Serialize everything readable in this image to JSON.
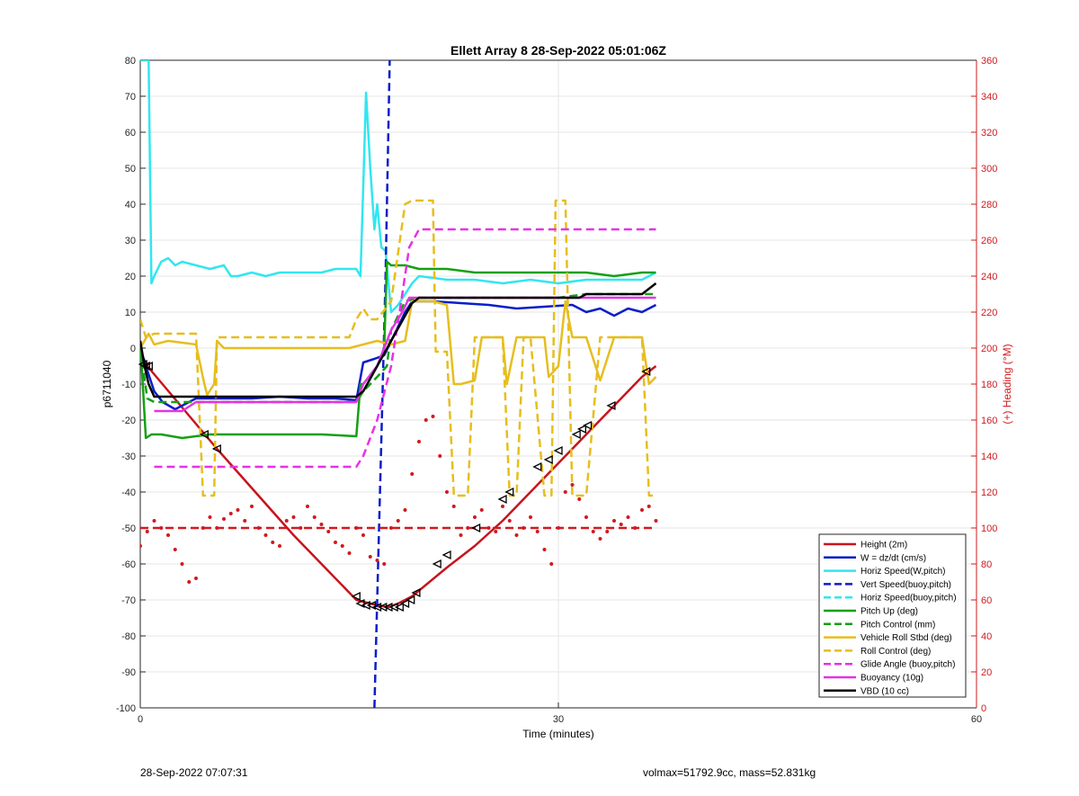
{
  "chart_data": {
    "type": "line",
    "title": "Ellett Array 8 28-Sep-2022 05:01:06Z",
    "xlabel": "Time (minutes)",
    "ylabel": "p6711040",
    "y2label": "(+) Heading (°M)",
    "xlim": [
      0,
      60
    ],
    "ylim": [
      -100,
      80
    ],
    "y2lim": [
      0,
      360
    ],
    "xticks": [
      "0",
      "30",
      "60"
    ],
    "yticks": [
      "80",
      "70",
      "60",
      "50",
      "40",
      "30",
      "20",
      "10",
      "0",
      "-10",
      "-20",
      "-30",
      "-40",
      "-50",
      "-60",
      "-70",
      "-80",
      "-90",
      "-100"
    ],
    "y2ticks": [
      "360",
      "340",
      "320",
      "300",
      "280",
      "260",
      "240",
      "220",
      "200",
      "180",
      "160",
      "140",
      "120",
      "100",
      "80",
      "60",
      "40",
      "20",
      "0"
    ],
    "grid": "on",
    "legend_position": "bottom-right",
    "series": [
      {
        "name": "Height (2m)",
        "color": "#c8141e",
        "style": "solid",
        "axis": "left",
        "x": [
          0,
          0.5,
          5.5,
          11,
          15.5,
          17,
          17.8,
          18.5,
          19.5,
          22,
          24,
          26,
          28,
          30,
          32,
          34,
          36,
          37
        ],
        "y": [
          -1,
          -5,
          -28,
          -52,
          -70,
          -71.5,
          -72,
          -71,
          -69,
          -61,
          -55,
          -48,
          -40,
          -32,
          -24,
          -16,
          -8,
          -5
        ]
      },
      {
        "name": "W = dz/dt (cm/s)",
        "color": "#0a1ec8",
        "style": "solid",
        "axis": "left",
        "x": [
          0,
          0.4,
          1,
          1.6,
          2.5,
          4,
          6,
          8,
          10,
          12,
          14,
          15.5,
          16,
          16.8,
          17.5,
          18,
          18.5,
          19,
          19.5,
          21,
          23,
          25,
          27,
          29,
          31,
          32,
          33,
          34,
          35,
          36,
          37
        ],
        "y": [
          0,
          -5,
          -12,
          -15,
          -17,
          -14,
          -14,
          -14,
          -13.5,
          -14,
          -14,
          -14.5,
          -4,
          -3,
          -2,
          2,
          6,
          10,
          13,
          13,
          12.5,
          12,
          11,
          11.5,
          12,
          10,
          11,
          9,
          11,
          10,
          12
        ]
      },
      {
        "name": "Horiz Speed(W,pitch)",
        "color": "#32e6f0",
        "style": "solid",
        "axis": "left",
        "x": [
          0,
          0.3,
          0.6,
          0.8,
          1,
          1.5,
          2,
          2.5,
          3,
          4,
          5,
          6,
          6.5,
          7,
          8,
          9,
          10,
          11,
          12,
          13,
          14,
          15,
          15.5,
          15.8,
          16,
          16.2,
          16.5,
          16.8,
          17,
          17.3,
          17.6,
          18,
          18.5,
          19,
          19.5,
          20,
          22,
          24,
          26,
          28,
          30,
          32,
          34,
          36,
          37
        ],
        "y": [
          80,
          80,
          80,
          18,
          20,
          24,
          25,
          23,
          24,
          23,
          22,
          23,
          20,
          20,
          21,
          20,
          21,
          21,
          21,
          21,
          22,
          22,
          22,
          20,
          45,
          71,
          50,
          33,
          40,
          28,
          27,
          10,
          12,
          15,
          18,
          20,
          19,
          19,
          18,
          19,
          18,
          19,
          19,
          19,
          21
        ]
      },
      {
        "name": "Vert Speed(buoy,pitch)",
        "color": "#0a1ec8",
        "style": "dash",
        "axis": "left",
        "x": [
          16.8,
          17.2,
          17.6,
          17.9
        ],
        "y": [
          -100,
          -40,
          20,
          80
        ]
      },
      {
        "name": "Horiz Speed(buoy,pitch)",
        "color": "#32e6f0",
        "style": "dash",
        "axis": "left",
        "x": [
          0,
          0.5
        ],
        "y": [
          80,
          80
        ]
      },
      {
        "name": "Pitch Up (deg)",
        "color": "#14a014",
        "style": "solid",
        "axis": "left",
        "x": [
          0,
          0.4,
          0.8,
          1.5,
          3,
          5,
          7,
          9,
          11,
          13,
          15.5,
          15.8,
          16,
          17,
          17.5,
          17.7,
          18,
          19,
          20,
          22,
          24,
          26,
          28,
          30,
          32,
          34,
          36,
          37
        ],
        "y": [
          2,
          -25,
          -24,
          -24,
          -25,
          -24,
          -24,
          -24,
          -24,
          -24,
          -24.5,
          -10,
          -10,
          -5,
          0,
          24,
          23,
          23,
          22,
          22,
          21,
          21,
          21,
          21,
          21,
          20,
          21,
          21
        ]
      },
      {
        "name": "Pitch Control (mm)",
        "color": "#14a014",
        "style": "dash",
        "axis": "left",
        "x": [
          0,
          0.5,
          1,
          5,
          10,
          15.5,
          16,
          17,
          17.7,
          18,
          19,
          20,
          25,
          30,
          32,
          37
        ],
        "y": [
          0,
          -14,
          -15,
          -15,
          -15,
          -15,
          -12,
          -8,
          -5,
          5,
          13,
          14,
          14,
          14,
          15,
          15
        ]
      },
      {
        "name": "Vehicle Roll Stbd (deg)",
        "color": "#e6be1e",
        "style": "solid",
        "axis": "left",
        "x": [
          0,
          0.6,
          1,
          2,
          4,
          4.6,
          4.8,
          5.3,
          5.5,
          6,
          10,
          15,
          16,
          17,
          18,
          19,
          19.5,
          20,
          21,
          22,
          22.5,
          23,
          24,
          24.5,
          25,
          26,
          26.3,
          27,
          28,
          29,
          29.3,
          30,
          30.5,
          31,
          32,
          33,
          34,
          36,
          36.5,
          37
        ],
        "y": [
          0,
          4,
          1,
          2,
          1,
          -10,
          -13,
          -10,
          2,
          0,
          0,
          0,
          1,
          2,
          1,
          2,
          13,
          13,
          13,
          12,
          -10,
          -10,
          -9,
          3,
          3,
          3,
          -10,
          3,
          3,
          3,
          -8,
          -5,
          13,
          3,
          3,
          -9,
          3,
          3,
          -10,
          -8
        ]
      },
      {
        "name": "Roll Control (deg)",
        "color": "#e6be1e",
        "style": "dash",
        "axis": "left",
        "x": [
          0,
          0.4,
          1,
          4,
          4.5,
          4.8,
          5.3,
          5.5,
          15,
          15.5,
          16,
          16.5,
          17,
          18,
          19,
          19.5,
          20,
          21,
          21.2,
          22,
          22.5,
          22.8,
          23.5,
          24,
          24.5,
          25,
          26,
          26.5,
          27,
          27.5,
          28,
          29,
          29.5,
          29.8,
          30.5,
          31,
          31.5,
          32,
          33,
          34,
          36,
          36.5,
          37
        ],
        "y": [
          8,
          3,
          4,
          4,
          -41,
          -41,
          -41,
          3,
          3,
          8,
          11,
          8,
          8,
          13,
          40,
          41,
          41,
          41,
          -1,
          -1,
          -41,
          -41,
          -41,
          3,
          3,
          3,
          3,
          -41,
          -41,
          3,
          3,
          -41,
          -41,
          41,
          41,
          -41,
          -41,
          -41,
          3,
          3,
          3,
          -41,
          -41
        ]
      },
      {
        "name": "Glide Angle (buoy,pitch)",
        "color": "#e632e6",
        "style": "dash",
        "axis": "left",
        "x": [
          1,
          1.5,
          3,
          5,
          8,
          11,
          14,
          15.5,
          16,
          17,
          18,
          18.8,
          19.3,
          20,
          22,
          24,
          26,
          28,
          30,
          32,
          34,
          36,
          37
        ],
        "y": [
          -33,
          -33,
          -33,
          -33,
          -33,
          -33,
          -33,
          -33,
          -30,
          -20,
          -5,
          15,
          28,
          33,
          33,
          33,
          33,
          33,
          33,
          33,
          33,
          33,
          33
        ]
      },
      {
        "name": "Buoyancy (10g)",
        "color": "#e632e6",
        "style": "solid",
        "axis": "left",
        "x": [
          1,
          2,
          3,
          4,
          15.5,
          16,
          17,
          18,
          18.8,
          19.3,
          20,
          25,
          30,
          36,
          37
        ],
        "y": [
          -17.5,
          -17.5,
          -17.5,
          -15,
          -15,
          -10,
          -5,
          5,
          10,
          14,
          14,
          14,
          14,
          14,
          14
        ]
      },
      {
        "name": "VBD (10 cc)",
        "color": "#000000",
        "style": "solid",
        "axis": "left",
        "x": [
          0,
          0.3,
          0.6,
          1,
          3,
          5,
          10,
          15.5,
          16,
          17,
          18,
          19,
          19.5,
          20,
          25,
          30,
          31.5,
          32,
          36,
          37
        ],
        "y": [
          2,
          -5,
          -10,
          -13.5,
          -13.5,
          -13.5,
          -13.5,
          -13.5,
          -12,
          -5,
          2,
          9,
          12.5,
          14,
          14,
          14,
          14,
          15,
          15,
          18
        ]
      },
      {
        "name": "Heading (dots)",
        "color": "#d2191e",
        "style": "dots",
        "axis": "right",
        "x": [
          0,
          0.5,
          1,
          1.5,
          2,
          2.5,
          3,
          3.5,
          4,
          4.5,
          5,
          5.5,
          6,
          6.5,
          7,
          7.5,
          8,
          8.5,
          9,
          9.5,
          10,
          10.5,
          11,
          11.5,
          12,
          12.5,
          13,
          13.5,
          14,
          14.5,
          15,
          15.5,
          16,
          16.5,
          17,
          17.5,
          18,
          18.5,
          19,
          19.5,
          20,
          20.5,
          21,
          21.5,
          22,
          22.5,
          23,
          23.5,
          24,
          24.5,
          25,
          25.5,
          26,
          26.5,
          27,
          27.5,
          28,
          28.5,
          29,
          29.5,
          30,
          30.5,
          31,
          31.5,
          32,
          32.5,
          33,
          33.5,
          34,
          34.5,
          35,
          35.5,
          36,
          36.5,
          37
        ],
        "y": [
          90,
          98,
          104,
          100,
          96,
          88,
          80,
          70,
          72,
          100,
          106,
          100,
          105,
          108,
          110,
          104,
          112,
          100,
          96,
          92,
          90,
          104,
          106,
          100,
          112,
          106,
          102,
          98,
          92,
          90,
          86,
          100,
          96,
          84,
          82,
          80,
          100,
          104,
          110,
          130,
          148,
          160,
          162,
          140,
          120,
          112,
          96,
          100,
          106,
          110,
          100,
          98,
          112,
          104,
          96,
          100,
          106,
          98,
          88,
          80,
          100,
          120,
          124,
          116,
          106,
          98,
          94,
          98,
          104,
          102,
          106,
          100,
          110,
          112,
          104
        ]
      },
      {
        "name": "Heading reference",
        "color": "#d2191e",
        "style": "dash",
        "axis": "right",
        "x": [
          0,
          37
        ],
        "y": [
          100,
          100
        ]
      }
    ],
    "triangle_markers": {
      "x": [
        0.2,
        0.4,
        0.6,
        4.6,
        5.5,
        15.5,
        15.8,
        16.2,
        16.6,
        17,
        17.4,
        17.8,
        18.2,
        18.6,
        19,
        19.4,
        19.8,
        21.3,
        22,
        24.1,
        26,
        26.5,
        28.5,
        29.3,
        30,
        31.3,
        31.7,
        32.1,
        33.8,
        36.3
      ],
      "y": [
        -4.5,
        -5,
        -5,
        -24,
        -28,
        -69,
        -71,
        -71.5,
        -71.5,
        -72,
        -72,
        -72,
        -72,
        -72,
        -71,
        -70,
        -68,
        -60,
        -57.5,
        -50,
        -42,
        -40,
        -33,
        -31,
        -28.5,
        -24,
        -22.5,
        -21.5,
        -16,
        -6.5
      ]
    }
  },
  "footer": {
    "left": "28-Sep-2022 07:07:31",
    "right": "volmax=51792.9cc, mass=52.831kg"
  },
  "legend": {
    "items": [
      "Height (2m)",
      "W = dz/dt (cm/s)",
      "Horiz Speed(W,pitch)",
      "Vert Speed(buoy,pitch)",
      "Horiz Speed(buoy,pitch)",
      "Pitch Up (deg)",
      "Pitch Control (mm)",
      "Vehicle Roll Stbd (deg)",
      "Roll Control (deg)",
      "Glide Angle (buoy,pitch)",
      "Buoyancy (10g)",
      "VBD (10 cc)"
    ],
    "colors": [
      "#c8141e",
      "#0a1ec8",
      "#32e6f0",
      "#0a1ec8",
      "#32e6f0",
      "#14a014",
      "#14a014",
      "#e6be1e",
      "#e6be1e",
      "#e632e6",
      "#e632e6",
      "#000000"
    ],
    "styles": [
      "solid",
      "solid",
      "solid",
      "dash",
      "dash",
      "solid",
      "dash",
      "solid",
      "dash",
      "dash",
      "solid",
      "solid"
    ]
  }
}
